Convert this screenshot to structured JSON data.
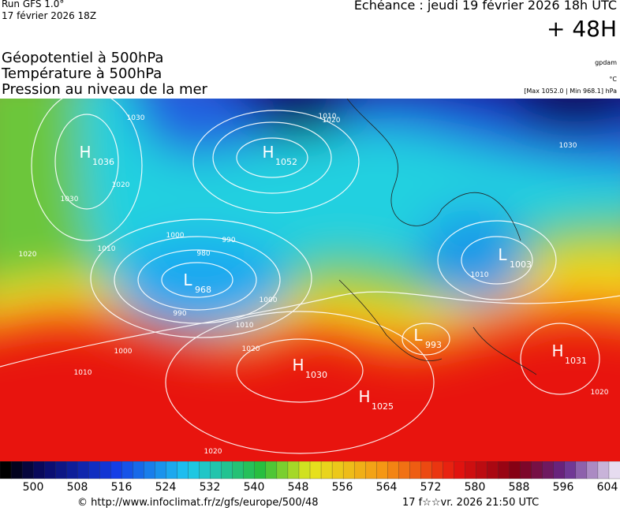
{
  "header": {
    "run": "Run GFS 1.0°",
    "date": "17 février 2026 18Z",
    "echeance": "Echéance : jeudi 19 février 2026 18h UTC",
    "lead": "+ 48H",
    "fields": [
      "Géopotentiel à 500hPa",
      "Température à 500hPa",
      "Pression au niveau de la mer"
    ],
    "units": [
      "gpdam",
      "°C",
      "[Max 1052.0 | Min 968.1] hPa"
    ]
  },
  "map": {
    "centers": [
      {
        "letter": "H",
        "value": "1036"
      },
      {
        "letter": "H",
        "value": "1052"
      },
      {
        "letter": "L",
        "value": "968"
      },
      {
        "letter": "L",
        "value": "1003"
      },
      {
        "letter": "L",
        "value": "993"
      },
      {
        "letter": "H",
        "value": "1030"
      },
      {
        "letter": "H",
        "value": "1025"
      },
      {
        "letter": "H",
        "value": "1031"
      }
    ],
    "isobar_labels": [
      "1030",
      "1020",
      "1030",
      "1010",
      "1000",
      "990",
      "980",
      "990",
      "1000",
      "1010",
      "1020",
      "1010",
      "1020",
      "1030",
      "1010",
      "1020",
      "1020",
      "1020",
      "1010",
      "1000"
    ]
  },
  "colorbar": {
    "labels": [
      "500",
      "508",
      "516",
      "524",
      "532",
      "540",
      "548",
      "556",
      "564",
      "572",
      "580",
      "588",
      "596",
      "604"
    ]
  },
  "footer": {
    "credit": "© http://www.infoclimat.fr/z/gfs/europe/500/48",
    "timestamp": "17 f☆☆vr. 2026 21:50 UTC"
  }
}
